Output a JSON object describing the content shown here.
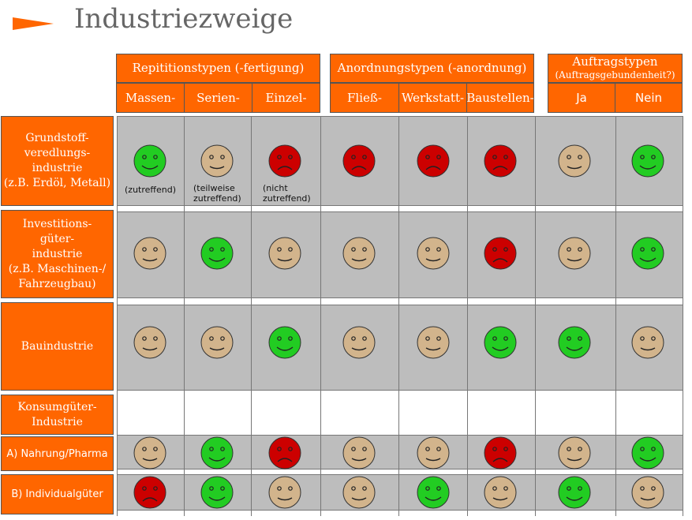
{
  "title": "Industriezweige",
  "colors": {
    "orange": "#ff6600",
    "green": "#22cc22",
    "beige": "#d2b48c",
    "red": "#cc0000",
    "band": "#bdbdbd"
  },
  "groups": [
    {
      "label": "Repititionstypen (-fertigung)",
      "sub": ""
    },
    {
      "label": "Anordnungstypen (-anordnung)",
      "sub": ""
    },
    {
      "label": "Auftragstypen",
      "sub": "(Auftragsgebundenheit?)"
    }
  ],
  "columns": [
    "Massen-",
    "Serien-",
    "Einzel-",
    "Fließ-",
    "Werkstatt-",
    "Baustellen-",
    "Ja",
    "Nein"
  ],
  "rows": [
    {
      "label": [
        "Grundstoff-",
        "veredlungs-",
        "industrie",
        "(z.B. Erdöl, Metall)"
      ],
      "faces": [
        "green",
        "beige",
        "red",
        "red",
        "red",
        "red",
        "beige",
        "green"
      ]
    },
    {
      "label": [
        "Investitions-",
        "güter-",
        "industrie",
        "(z.B. Maschinen-/",
        "Fahrzeugbau)"
      ],
      "faces": [
        "beige",
        "green",
        "beige",
        "beige",
        "beige",
        "red",
        "beige",
        "green"
      ]
    },
    {
      "label": [
        "Bauindustrie"
      ],
      "faces": [
        "beige",
        "beige",
        "green",
        "beige",
        "beige",
        "green",
        "green",
        "beige"
      ]
    },
    {
      "label": [
        "Konsumgüter-",
        "Industrie"
      ],
      "faces": []
    },
    {
      "label": [
        "A) Nahrung/Pharma"
      ],
      "faces": [
        "beige",
        "green",
        "red",
        "beige",
        "beige",
        "red",
        "beige",
        "green"
      ]
    },
    {
      "label": [
        "B) Individualgüter"
      ],
      "faces": [
        "red",
        "green",
        "beige",
        "beige",
        "green",
        "beige",
        "green",
        "beige"
      ]
    }
  ],
  "legend": {
    "green": "(zutreffend)",
    "beige_1": "(teilweise",
    "beige_2": "zutreffend)",
    "red_1": "(nicht",
    "red_2": "zutreffend)"
  }
}
